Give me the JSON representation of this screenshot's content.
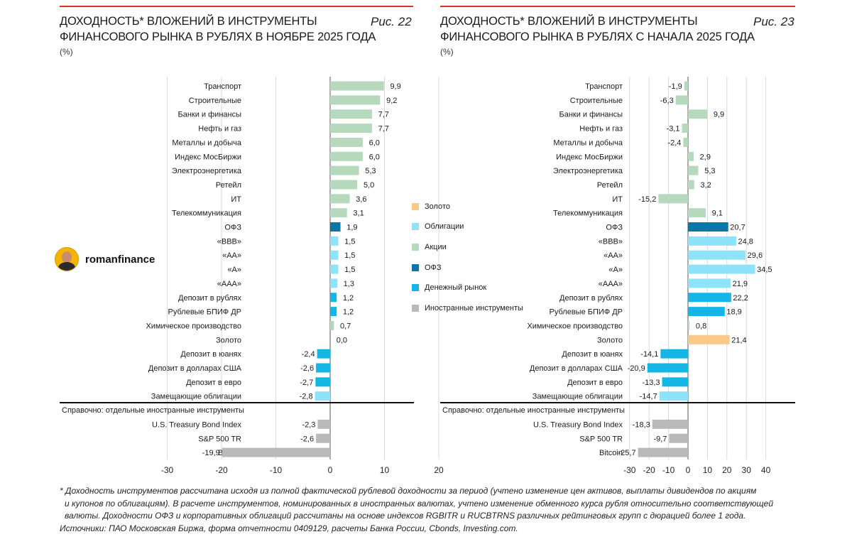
{
  "colors": {
    "gold": "#f9c98b",
    "bonds": "#8fe3f8",
    "shares": "#b6d8bc",
    "ofz": "#0b77a6",
    "money_market": "#14b6e6",
    "foreign": "#b9b9bb",
    "accent": "#e0301e"
  },
  "brand": {
    "name": "romanfinance",
    "icon": "avatar-icon"
  },
  "legend": [
    {
      "label": "Золото",
      "color": "#f9c98b"
    },
    {
      "label": "Облигации",
      "color": "#8fe3f8"
    },
    {
      "label": "Акции",
      "color": "#b6d8bc"
    },
    {
      "label": "ОФЗ",
      "color": "#0b77a6"
    },
    {
      "label": "Денежный рынок",
      "color": "#14b6e6"
    },
    {
      "label": "Иностранные инструменты",
      "color": "#b9b9bb"
    }
  ],
  "chart_data": [
    {
      "type": "bar",
      "orientation": "horizontal",
      "title": "ДОХОДНОСТЬ* ВЛОЖЕНИЙ В ИНСТРУМЕНТЫ ФИНАНСОВОГО РЫНКА В РУБЛЯХ В НОЯБРЕ 2025 ГОДА",
      "figure_label": "Рис. 22",
      "unit": "(%)",
      "xlim": [
        -30,
        20
      ],
      "ticks": [
        "-30",
        "-20",
        "-10",
        "0",
        "10",
        "20"
      ],
      "reference_label": "Справочно: отдельные иностранные инструменты",
      "categories": [
        "Транспорт",
        "Строительные",
        "Банки и финансы",
        "Нефть и газ",
        "Металлы и добыча",
        "Индекс МосБиржи",
        "Электроэнергетика",
        "Ретейл",
        "ИТ",
        "Телекоммуникация",
        "ОФЗ",
        "«BBB»",
        "«AA»",
        "«A»",
        "«AAA»",
        "Депозит в рублях",
        "Рублевые БПИФ ДР",
        "Химическое производство",
        "Золото",
        "Депозит в юанях",
        "Депозит в долларах США",
        "Депозит в евро",
        "Замещающие облигации",
        "U.S. Treasury Bond Index",
        "S&P 500 TR",
        "Bitcoin"
      ],
      "values": [
        9.9,
        9.2,
        7.7,
        7.7,
        6.0,
        6.0,
        5.3,
        5.0,
        3.6,
        3.1,
        1.9,
        1.5,
        1.5,
        1.5,
        1.3,
        1.2,
        1.2,
        0.7,
        0.0,
        -2.4,
        -2.6,
        -2.7,
        -2.8,
        -2.3,
        -2.6,
        -19.9
      ],
      "value_labels": [
        "9,9",
        "9,2",
        "7,7",
        "7,7",
        "6,0",
        "6,0",
        "5,3",
        "5,0",
        "3,6",
        "3,1",
        "1,9",
        "1,5",
        "1,5",
        "1,5",
        "1,3",
        "1,2",
        "1,2",
        "0,7",
        "0,0",
        "-2,4",
        "-2,6",
        "-2,7",
        "-2,8",
        "-2,3",
        "-2,6",
        "-19,9"
      ],
      "groups": [
        "shares",
        "shares",
        "shares",
        "shares",
        "shares",
        "shares",
        "shares",
        "shares",
        "shares",
        "shares",
        "ofz",
        "bonds",
        "bonds",
        "bonds",
        "bonds",
        "money_market",
        "money_market",
        "shares",
        "gold",
        "money_market",
        "money_market",
        "money_market",
        "bonds",
        "foreign",
        "foreign",
        "foreign"
      ]
    },
    {
      "type": "bar",
      "orientation": "horizontal",
      "title": "ДОХОДНОСТЬ* ВЛОЖЕНИЙ В ИНСТРУМЕНТЫ ФИНАНСОВОГО РЫНКА В РУБЛЯХ С НАЧАЛА 2025 ГОДА",
      "figure_label": "Рис. 23",
      "unit": "(%)",
      "xlim": [
        -30,
        40
      ],
      "ticks": [
        "-30",
        "-20",
        "-10",
        "0",
        "10",
        "20",
        "30",
        "40"
      ],
      "reference_label": "Справочно: отдельные иностранные инструменты",
      "categories": [
        "Транспорт",
        "Строительные",
        "Банки и финансы",
        "Нефть и газ",
        "Металлы и добыча",
        "Индекс МосБиржи",
        "Электроэнергетика",
        "Ретейл",
        "ИТ",
        "Телекоммуникация",
        "ОФЗ",
        "«BBB»",
        "«AA»",
        "«A»",
        "«AAA»",
        "Депозит в рублях",
        "Рублевые БПИФ ДР",
        "Химическое производство",
        "Золото",
        "Депозит в юанях",
        "Депозит в долларах США",
        "Депозит в евро",
        "Замещающие облигации",
        "U.S. Treasury Bond Index",
        "S&P 500 TR",
        "Bitcoin"
      ],
      "values": [
        -1.9,
        -6.3,
        9.9,
        -3.1,
        -2.4,
        2.9,
        5.3,
        3.2,
        -15.2,
        9.1,
        20.7,
        24.8,
        29.6,
        34.5,
        21.9,
        22.2,
        18.9,
        0.8,
        21.4,
        -14.1,
        -20.9,
        -13.3,
        -14.7,
        -18.3,
        -9.7,
        -25.7
      ],
      "value_labels": [
        "-1,9",
        "-6,3",
        "9,9",
        "-3,1",
        "-2,4",
        "2,9",
        "5,3",
        "3,2",
        "-15,2",
        "9,1",
        "20,7",
        "24,8",
        "29,6",
        "34,5",
        "21,9",
        "22,2",
        "18,9",
        "0,8",
        "21,4",
        "-14,1",
        "-20,9",
        "-13,3",
        "-14,7",
        "-18,3",
        "-9,7",
        "-25,7"
      ],
      "groups": [
        "shares",
        "shares",
        "shares",
        "shares",
        "shares",
        "shares",
        "shares",
        "shares",
        "shares",
        "shares",
        "ofz",
        "bonds",
        "bonds",
        "bonds",
        "bonds",
        "money_market",
        "money_market",
        "shares",
        "gold",
        "money_market",
        "money_market",
        "money_market",
        "bonds",
        "foreign",
        "foreign",
        "foreign"
      ]
    }
  ],
  "footnote": {
    "line1": "* Доходность инструментов рассчитана исходя из полной фактической рублевой доходности за период (учтено изменение цен активов, выплаты дивидендов по акциям",
    "line2": "и купонов по облигациям). В расчете инструментов, номинированных в иностранных валютах, учтено изменение обменного курса рубля относительно соответствующей",
    "line3": "валюты. Доходности ОФЗ и корпоративных облигаций рассчитаны на основе индексов RGBITR и RUCBTRNS различных рейтинговых групп с дюрацией более 1 года.",
    "sources": "Источники: ПАО Московская Биржа, форма отчетности 0409129, расчеты Банка России, Cbonds, Investing.com."
  }
}
